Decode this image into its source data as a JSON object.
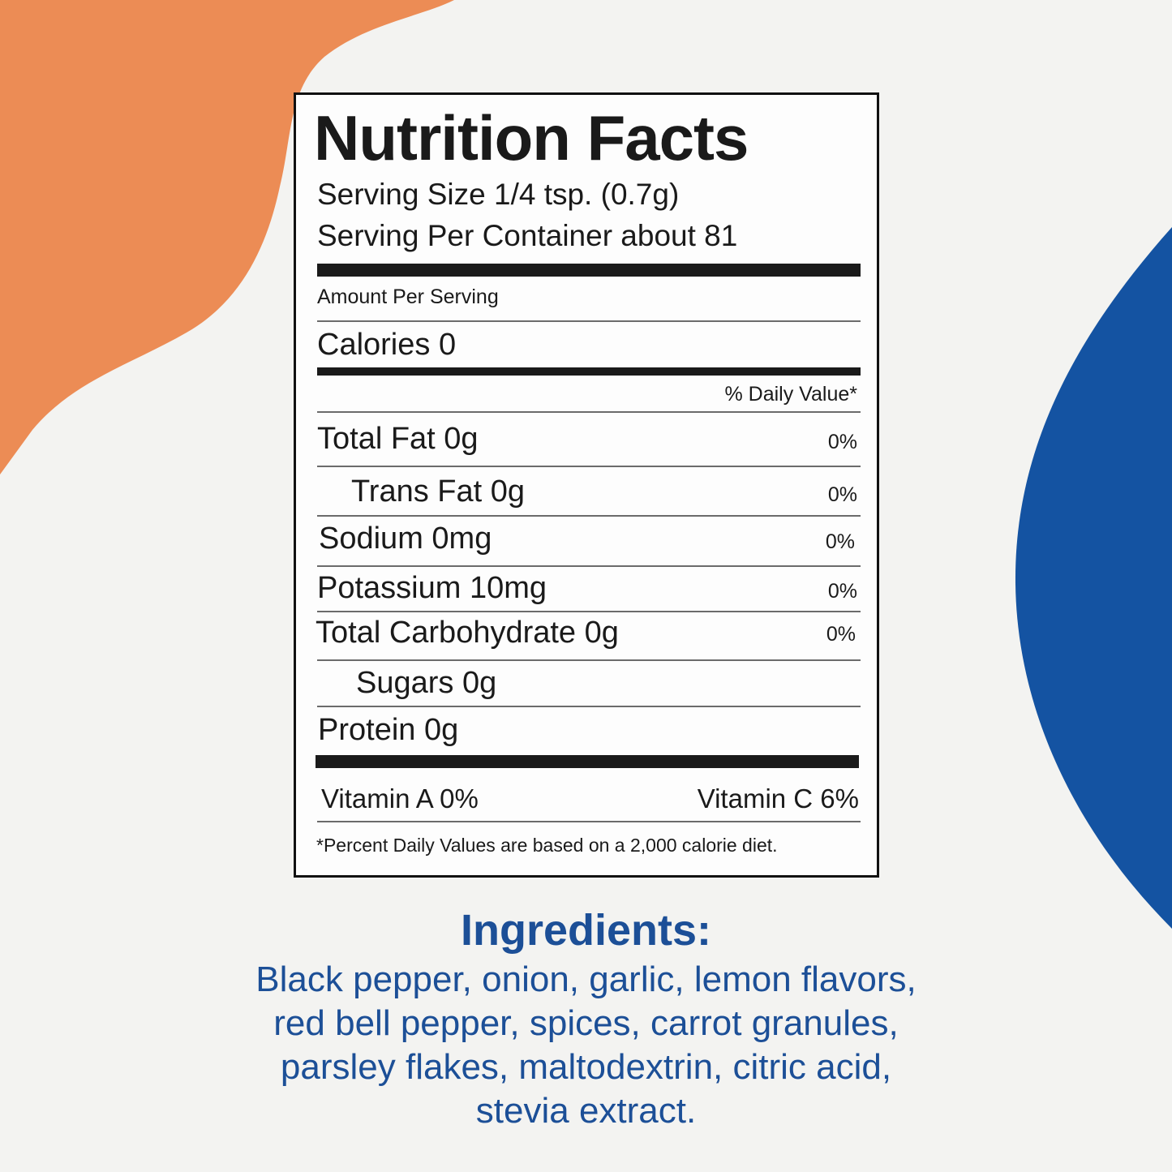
{
  "colors": {
    "orange": "#ec8c55",
    "blue": "#1453a2",
    "ink": "#1a1a1a",
    "ingredients_text": "#1c4f97"
  },
  "nutrition": {
    "title": "Nutrition Facts",
    "serving_size": "Serving Size 1/4 tsp. (0.7g)",
    "servings_per_container": "Serving Per Container about 81",
    "amount_per_serving": "Amount Per Serving",
    "calories": "Calories 0",
    "daily_value_header": "% Daily Value*",
    "rows": [
      {
        "label": "Total Fat 0g",
        "dv": "0%"
      },
      {
        "label": "Trans Fat 0g",
        "dv": "0%"
      },
      {
        "label": "Sodium 0mg",
        "dv": "0%"
      },
      {
        "label": "Potassium  10mg",
        "dv": "0%"
      },
      {
        "label": "Total Carbohydrate  0g",
        "dv": "0%"
      },
      {
        "label": "Sugars  0g",
        "dv": ""
      },
      {
        "label": "Protein 0g",
        "dv": ""
      }
    ],
    "vitamin_a": "Vitamin A  0%",
    "vitamin_c": "Vitamin C   6%",
    "footnote": "*Percent Daily Values are based on a 2,000 calorie diet."
  },
  "ingredients": {
    "title": "Ingredients:",
    "lines": [
      "Black pepper, onion, garlic, lemon flavors,",
      "red bell pepper, spices, carrot granules,",
      "parsley flakes, maltodextrin, citric acid,",
      "stevia extract."
    ]
  }
}
